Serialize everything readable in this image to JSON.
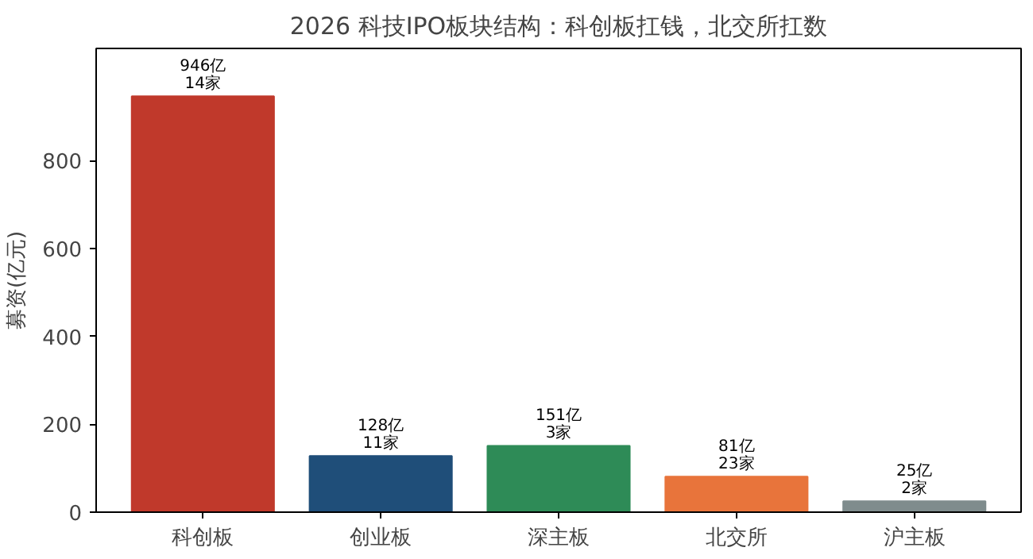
{
  "chart_data": {
    "type": "bar",
    "title": "2026 科技IPO板块结构：科创板扛钱，北交所扛数",
    "ylabel": "募资(亿元)",
    "categories": [
      "科创板",
      "创业板",
      "深主板",
      "北交所",
      "沪主板"
    ],
    "values": [
      946,
      128,
      151,
      81,
      25
    ],
    "colors": [
      "#c0392b",
      "#1f4e79",
      "#2e8b57",
      "#e8743b",
      "#7f8c8d"
    ],
    "value_labels": [
      "946亿\n14家",
      "128亿\n11家",
      "151亿\n3家",
      "81亿\n23家",
      "25亿\n2家"
    ],
    "ylim": [
      0,
      1055
    ],
    "yticks": [
      0,
      200,
      400,
      600,
      800
    ],
    "grid": false
  }
}
